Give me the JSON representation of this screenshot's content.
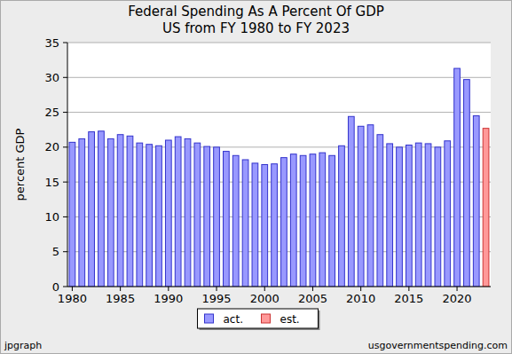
{
  "chart_data": {
    "type": "bar",
    "title": "Federal Spending As A Percent Of GDP",
    "subtitle": "US from FY 1980 to FY 2023",
    "y_label": "percent GDP",
    "annotations": [
      "jpgraph",
      "usgovernmentspending.com"
    ],
    "x": [
      1980,
      1981,
      1982,
      1983,
      1984,
      1985,
      1986,
      1987,
      1988,
      1989,
      1990,
      1991,
      1992,
      1993,
      1994,
      1995,
      1996,
      1997,
      1998,
      1999,
      2000,
      2001,
      2002,
      2003,
      2004,
      2005,
      2006,
      2007,
      2008,
      2009,
      2010,
      2011,
      2012,
      2013,
      2014,
      2015,
      2016,
      2017,
      2018,
      2019,
      2020,
      2021,
      2022,
      2023
    ],
    "series": [
      {
        "name": "act.",
        "color": "#9999ff",
        "values": [
          20.7,
          21.2,
          22.2,
          22.3,
          21.2,
          21.8,
          21.6,
          20.6,
          20.4,
          20.2,
          21.0,
          21.5,
          21.2,
          20.6,
          20.1,
          20.0,
          19.4,
          18.8,
          18.2,
          17.7,
          17.5,
          17.6,
          18.5,
          19.0,
          18.8,
          19.0,
          19.2,
          18.8,
          20.2,
          24.4,
          23.0,
          23.2,
          21.8,
          20.5,
          20.0,
          20.3,
          20.6,
          20.5,
          20.0,
          20.9,
          31.3,
          29.7,
          24.5,
          null
        ]
      },
      {
        "name": "est.",
        "color": "#ff9999",
        "values": [
          null,
          null,
          null,
          null,
          null,
          null,
          null,
          null,
          null,
          null,
          null,
          null,
          null,
          null,
          null,
          null,
          null,
          null,
          null,
          null,
          null,
          null,
          null,
          null,
          null,
          null,
          null,
          null,
          null,
          null,
          null,
          null,
          null,
          null,
          null,
          null,
          null,
          null,
          null,
          null,
          null,
          null,
          null,
          22.7
        ]
      }
    ],
    "xlim": [
      1979.5,
      2023.5
    ],
    "xticks": [
      1980,
      1985,
      1990,
      1995,
      2000,
      2005,
      2010,
      2015,
      2020
    ],
    "ylim": [
      0,
      35
    ],
    "yticks": [
      0,
      5,
      10,
      15,
      20,
      25,
      30,
      35
    ],
    "grid": true,
    "legend": "bottom"
  }
}
